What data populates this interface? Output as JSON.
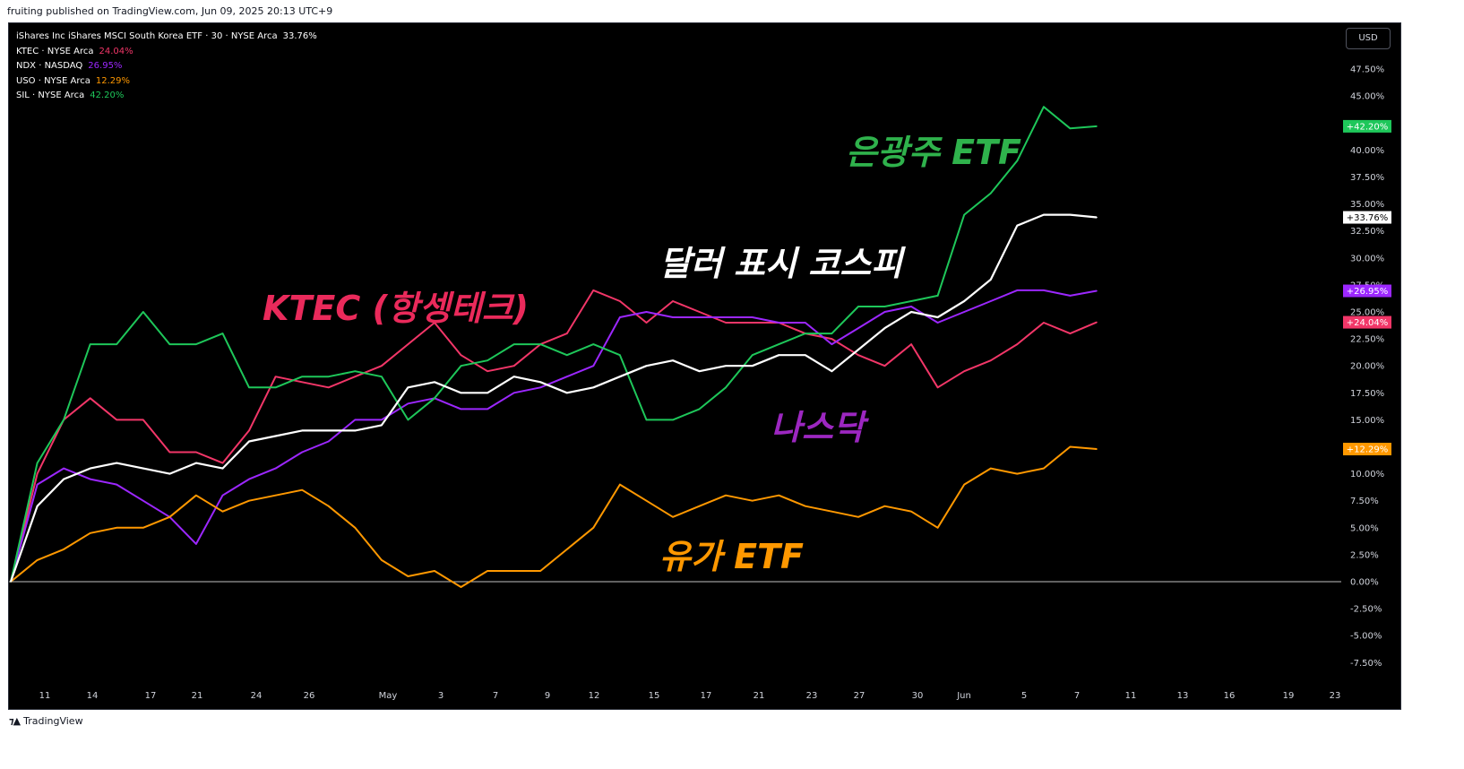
{
  "publisher": "fruiting published on TradingView.com, Jun 09, 2025 20:13 UTC+9",
  "footer_brand": "TradingView",
  "currency_button": "USD",
  "legend": [
    {
      "symbol": "iShares Inc iShares MSCI South Korea ETF · 30 · NYSE Arca",
      "value": "33.76%",
      "color": "#ffffff"
    },
    {
      "symbol": "KTEC · NYSE Arca",
      "value": "24.04%",
      "color": "#f23668"
    },
    {
      "symbol": "NDX · NASDAQ",
      "value": "26.95%",
      "color": "#9c27ff"
    },
    {
      "symbol": "USO · NYSE Arca",
      "value": "12.29%",
      "color": "#ff9800"
    },
    {
      "symbol": "SIL · NYSE Arca",
      "value": "42.20%",
      "color": "#1ec75a"
    }
  ],
  "chart_data": {
    "type": "line",
    "grid": false,
    "y_unit": "%",
    "ylim": [
      -8.75,
      48.75
    ],
    "y_ticks": [
      "47.50%",
      "45.00%",
      "42.50%",
      "40.00%",
      "37.50%",
      "35.00%",
      "32.50%",
      "30.00%",
      "27.50%",
      "25.00%",
      "22.50%",
      "20.00%",
      "17.50%",
      "15.00%",
      "12.50%",
      "10.00%",
      "7.50%",
      "5.00%",
      "2.50%",
      "0.00%",
      "-2.50%",
      "-5.00%",
      "-7.50%"
    ],
    "y_tick_values": [
      47.5,
      45,
      42.5,
      40,
      37.5,
      35,
      32.5,
      30,
      27.5,
      25,
      22.5,
      20,
      17.5,
      15,
      12.5,
      10,
      7.5,
      5,
      2.5,
      0,
      -2.5,
      -5,
      -7.5
    ],
    "x_ticks": [
      "11",
      "14",
      "17",
      "21",
      "24",
      "26",
      "May",
      "3",
      "7",
      "9",
      "12",
      "15",
      "17",
      "21",
      "23",
      "27",
      "30",
      "Jun",
      "5",
      "7",
      "11",
      "13",
      "16",
      "19",
      "23"
    ],
    "x": [
      "Apr 9",
      "Apr 10",
      "Apr 11",
      "Apr 14",
      "Apr 15",
      "Apr 16",
      "Apr 17",
      "Apr 21",
      "Apr 22",
      "Apr 23",
      "Apr 24",
      "Apr 25",
      "Apr 28",
      "Apr 29",
      "Apr 30",
      "May 1",
      "May 2",
      "May 5",
      "May 6",
      "May 7",
      "May 8",
      "May 9",
      "May 12",
      "May 13",
      "May 14",
      "May 15",
      "May 16",
      "May 19",
      "May 20",
      "May 21",
      "May 22",
      "May 23",
      "May 27",
      "May 28",
      "May 29",
      "May 30",
      "Jun 2",
      "Jun 3",
      "Jun 4",
      "Jun 5",
      "Jun 6",
      "Jun 9"
    ],
    "series": [
      {
        "name": "iShares Inc iShares MSCI South Korea ETF",
        "color": "#ffffff",
        "last_label": "+33.76%",
        "values": [
          0,
          7,
          9.5,
          10.5,
          11,
          10.5,
          10,
          11,
          10.5,
          13,
          13.5,
          14,
          14,
          14,
          14.5,
          18,
          18.5,
          17.5,
          17.5,
          19,
          18.5,
          17.5,
          18,
          19,
          20,
          20.5,
          19.5,
          20,
          20,
          21,
          21,
          19.5,
          21.5,
          23.5,
          25,
          24.5,
          26,
          28,
          33,
          34,
          34,
          33.76
        ]
      },
      {
        "name": "KTEC",
        "color": "#f23668",
        "last_label": "+24.04%",
        "values": [
          0,
          10,
          15,
          17,
          15,
          15,
          12,
          12,
          11,
          14,
          19,
          18.5,
          18,
          19,
          20,
          22,
          24,
          21,
          19.5,
          20,
          22,
          23,
          27,
          26,
          24,
          26,
          25,
          24,
          24,
          24,
          23,
          22.5,
          21,
          20,
          22,
          18,
          19.5,
          20.5,
          22,
          24,
          23,
          24.04
        ]
      },
      {
        "name": "NDX",
        "color": "#9c27ff",
        "last_label": "+26.95%",
        "values": [
          0,
          9,
          10.5,
          9.5,
          9,
          7.5,
          6,
          3.5,
          8,
          9.5,
          10.5,
          12,
          13,
          15,
          15,
          16.5,
          17,
          16,
          16,
          17.5,
          18,
          19,
          20,
          24.5,
          25,
          24.5,
          24.5,
          24.5,
          24.5,
          24,
          24,
          22,
          23.5,
          25,
          25.5,
          24,
          25,
          26,
          27,
          27,
          26.5,
          26.95
        ]
      },
      {
        "name": "USO",
        "color": "#ff9800",
        "last_label": "+12.29%",
        "values": [
          0,
          2,
          3,
          4.5,
          5,
          5,
          6,
          8,
          6.5,
          7.5,
          8,
          8.5,
          7,
          5,
          2,
          0.5,
          1,
          -0.5,
          1,
          1,
          1,
          3,
          5,
          9,
          7.5,
          6,
          7,
          8,
          7.5,
          8,
          7,
          6.5,
          6,
          7,
          6.5,
          5,
          9,
          10.5,
          10,
          10.5,
          12.5,
          12.29
        ]
      },
      {
        "name": "SIL",
        "color": "#1ec75a",
        "last_label": "+42.20%",
        "values": [
          0,
          11,
          15,
          22,
          22,
          25,
          22,
          22,
          23,
          18,
          18,
          19,
          19,
          19.5,
          19,
          15,
          17,
          20,
          20.5,
          22,
          22,
          21,
          22,
          21,
          15,
          15,
          16,
          18,
          21,
          22,
          23,
          23,
          25.5,
          25.5,
          26,
          26.5,
          34,
          36,
          39,
          44,
          42,
          42.2
        ]
      }
    ],
    "annotations": [
      {
        "text": "은광주 ETF",
        "color": "#2fb24c"
      },
      {
        "text": "달러 표시 코스피",
        "color": "#ffffff"
      },
      {
        "text": "KTEC (항셍테크)",
        "color": "#ea2a5b"
      },
      {
        "text": "나스닥",
        "color": "#9c27c0"
      },
      {
        "text": "유가 ETF",
        "color": "#ff9800"
      }
    ]
  }
}
